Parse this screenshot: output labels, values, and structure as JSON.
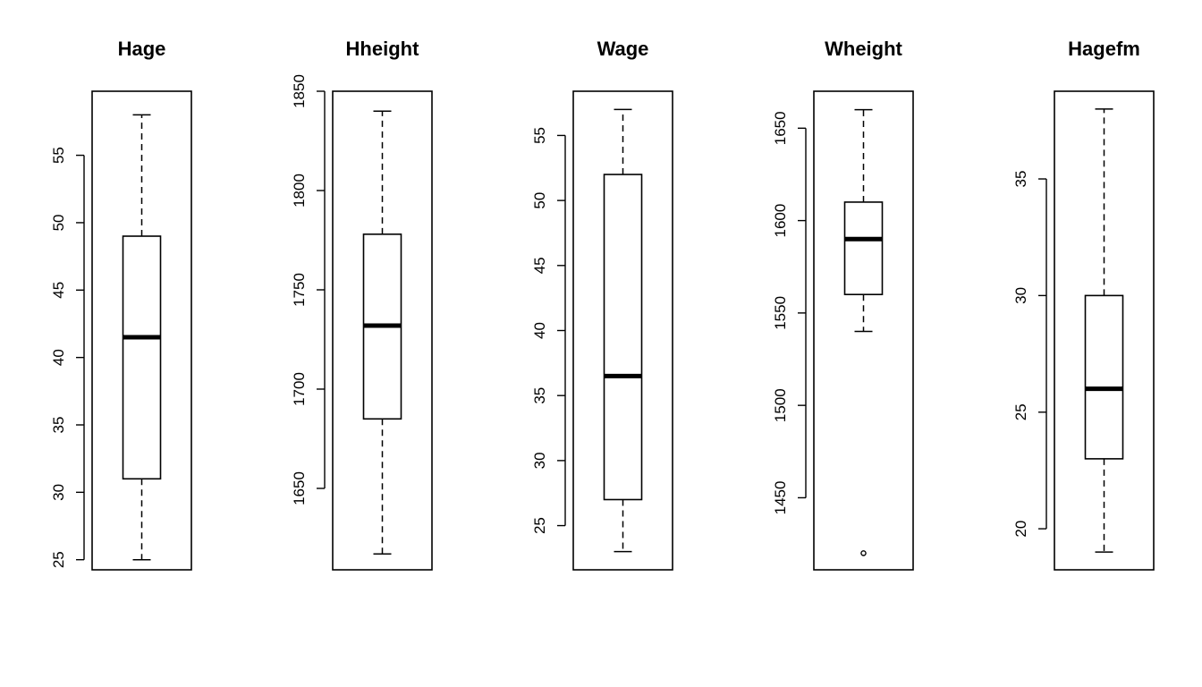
{
  "chart_data": [
    {
      "type": "box",
      "title": "Hage",
      "ylim": [
        24.25,
        59.75
      ],
      "yticks": [
        25,
        30,
        35,
        40,
        45,
        50,
        55
      ],
      "box": {
        "min": 25,
        "q1": 31,
        "median": 41.5,
        "q3": 49,
        "max": 58
      },
      "outliers": []
    },
    {
      "type": "box",
      "title": "Hheight",
      "ylim": [
        1609,
        1850
      ],
      "yticks": [
        1650,
        1700,
        1750,
        1800,
        1850
      ],
      "box": {
        "min": 1617,
        "q1": 1685,
        "median": 1732,
        "q3": 1778,
        "max": 1840
      },
      "outliers": []
    },
    {
      "type": "box",
      "title": "Wage",
      "ylim": [
        21.6,
        58.4
      ],
      "yticks": [
        25,
        30,
        35,
        40,
        45,
        50,
        55
      ],
      "box": {
        "min": 23,
        "q1": 27,
        "median": 36.5,
        "q3": 52,
        "max": 57
      },
      "outliers": []
    },
    {
      "type": "box",
      "title": "Wheight",
      "ylim": [
        1411,
        1670
      ],
      "yticks": [
        1450,
        1500,
        1550,
        1600,
        1650
      ],
      "box": {
        "min": 1540,
        "q1": 1560,
        "median": 1590,
        "q3": 1610,
        "max": 1660
      },
      "outliers": [
        1420
      ]
    },
    {
      "type": "box",
      "title": "Hagefm",
      "ylim": [
        18.24,
        38.76
      ],
      "yticks": [
        20,
        25,
        30,
        35
      ],
      "box": {
        "min": 19,
        "q1": 23,
        "median": 26,
        "q3": 30,
        "max": 38
      },
      "outliers": []
    }
  ]
}
